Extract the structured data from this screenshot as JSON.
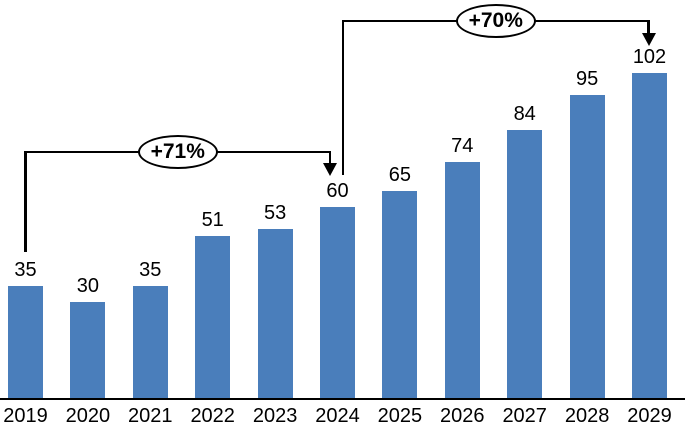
{
  "chart_data": {
    "type": "bar",
    "categories": [
      "2019",
      "2020",
      "2021",
      "2022",
      "2023",
      "2024",
      "2025",
      "2026",
      "2027",
      "2028",
      "2029"
    ],
    "values": [
      35,
      30,
      35,
      51,
      53,
      60,
      65,
      74,
      84,
      95,
      102
    ],
    "title": "",
    "xlabel": "",
    "ylabel": "",
    "ylim": [
      0,
      102
    ],
    "grid": false,
    "y_axis_visible": false,
    "value_labels_visible": true,
    "bar_color": "#4a7ebb",
    "axis_color": "#000000",
    "annotation_color": "#000000",
    "annotations": [
      {
        "label": "+71%",
        "from": "2019",
        "to": "2024"
      },
      {
        "label": "+70%",
        "from": "2024",
        "to": "2029"
      }
    ]
  }
}
